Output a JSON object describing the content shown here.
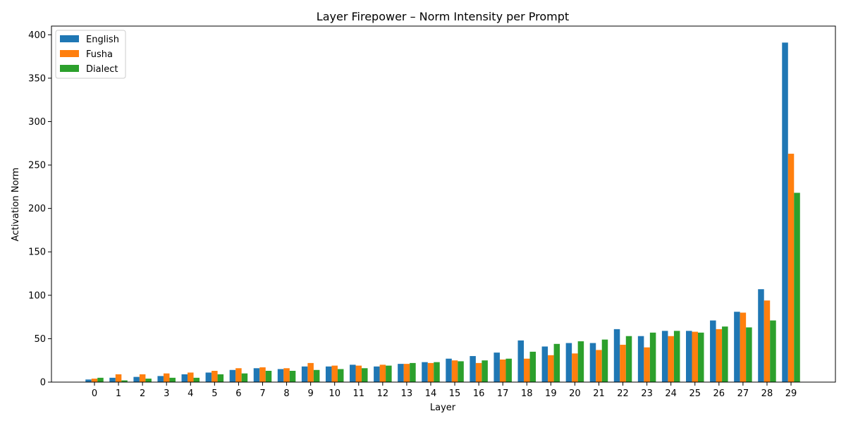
{
  "chart_data": {
    "type": "bar",
    "title": "Layer Firepower – Norm Intensity per Prompt",
    "xlabel": "Layer",
    "ylabel": "Activation Norm",
    "ylim": [
      0,
      410
    ],
    "yticks": [
      0,
      50,
      100,
      150,
      200,
      250,
      300,
      350,
      400
    ],
    "grid": false,
    "legend_position": "top-left",
    "categories": [
      "0",
      "1",
      "2",
      "3",
      "4",
      "5",
      "6",
      "7",
      "8",
      "9",
      "10",
      "11",
      "12",
      "13",
      "14",
      "15",
      "16",
      "17",
      "18",
      "19",
      "20",
      "21",
      "22",
      "23",
      "24",
      "25",
      "26",
      "27",
      "28",
      "29"
    ],
    "series": [
      {
        "name": "English",
        "color": "#1f77b4",
        "values": [
          3,
          5,
          6,
          7,
          9,
          11,
          14,
          16,
          15,
          18,
          18,
          20,
          18,
          21,
          23,
          27,
          30,
          34,
          48,
          41,
          45,
          45,
          61,
          53,
          59,
          59,
          71,
          81,
          107,
          391
        ]
      },
      {
        "name": "Fusha",
        "color": "#ff7f0e",
        "values": [
          4,
          9,
          9,
          10,
          11,
          13,
          16,
          17,
          16,
          22,
          19,
          19,
          20,
          21,
          22,
          25,
          22,
          26,
          27,
          31,
          33,
          37,
          43,
          40,
          53,
          58,
          61,
          80,
          94,
          263
        ]
      },
      {
        "name": "Dialect",
        "color": "#2ca02c",
        "values": [
          5,
          2,
          4,
          5,
          5,
          9,
          10,
          13,
          13,
          14,
          15,
          16,
          19,
          22,
          23,
          24,
          25,
          27,
          35,
          44,
          47,
          49,
          53,
          57,
          59,
          57,
          64,
          63,
          71,
          218
        ]
      }
    ]
  }
}
